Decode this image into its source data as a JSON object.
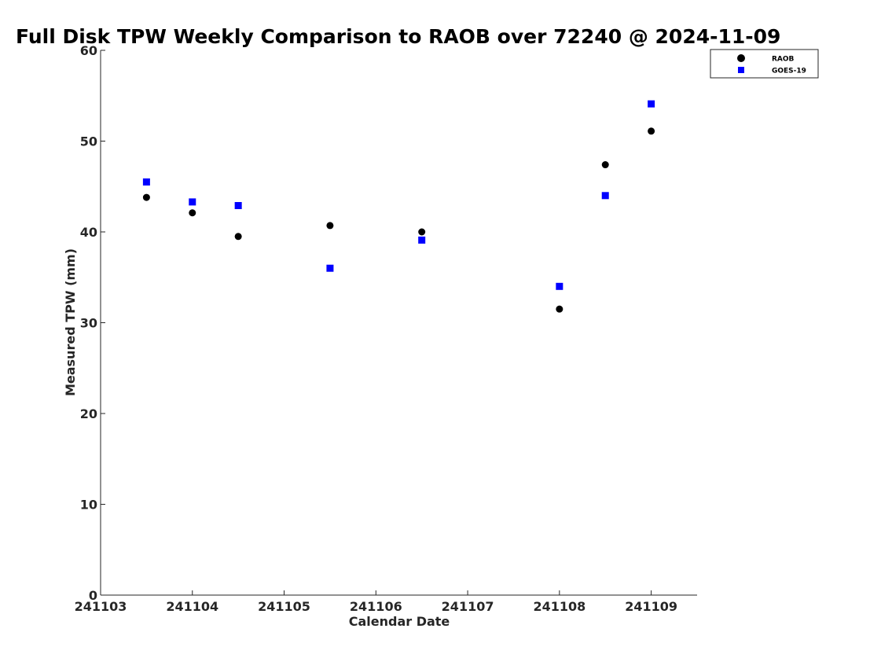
{
  "chart_data": {
    "type": "scatter",
    "title": "Full Disk TPW Weekly Comparison to RAOB over 72240 @ 2024-11-09",
    "xlabel": "Calendar Date",
    "ylabel": "Measured TPW (mm)",
    "xlim": [
      0,
      6.5
    ],
    "ylim": [
      0,
      60
    ],
    "xticks": [
      {
        "value": 0,
        "label": "241103"
      },
      {
        "value": 1,
        "label": "241104"
      },
      {
        "value": 2,
        "label": "241105"
      },
      {
        "value": 3,
        "label": "241106"
      },
      {
        "value": 4,
        "label": "241107"
      },
      {
        "value": 5,
        "label": "241108"
      },
      {
        "value": 6,
        "label": "241109"
      }
    ],
    "yticks": [
      0,
      10,
      20,
      30,
      40,
      50,
      60
    ],
    "grid": false,
    "legend_position": "top-right",
    "series": [
      {
        "name": "RAOB",
        "marker": "circle",
        "color": "#000000",
        "points": [
          {
            "x": 0.5,
            "y": 43.8
          },
          {
            "x": 1.0,
            "y": 42.1
          },
          {
            "x": 1.5,
            "y": 39.5
          },
          {
            "x": 2.5,
            "y": 40.7
          },
          {
            "x": 3.5,
            "y": 40.0
          },
          {
            "x": 5.0,
            "y": 31.5
          },
          {
            "x": 5.5,
            "y": 47.4
          },
          {
            "x": 6.0,
            "y": 51.1
          }
        ]
      },
      {
        "name": "GOES-19",
        "marker": "square",
        "color": "#0000ff",
        "points": [
          {
            "x": 0.5,
            "y": 45.5
          },
          {
            "x": 1.0,
            "y": 43.3
          },
          {
            "x": 1.5,
            "y": 42.9
          },
          {
            "x": 2.5,
            "y": 36.0
          },
          {
            "x": 3.5,
            "y": 39.1
          },
          {
            "x": 5.0,
            "y": 34.0
          },
          {
            "x": 5.5,
            "y": 44.0
          },
          {
            "x": 6.0,
            "y": 54.1
          }
        ]
      }
    ]
  }
}
